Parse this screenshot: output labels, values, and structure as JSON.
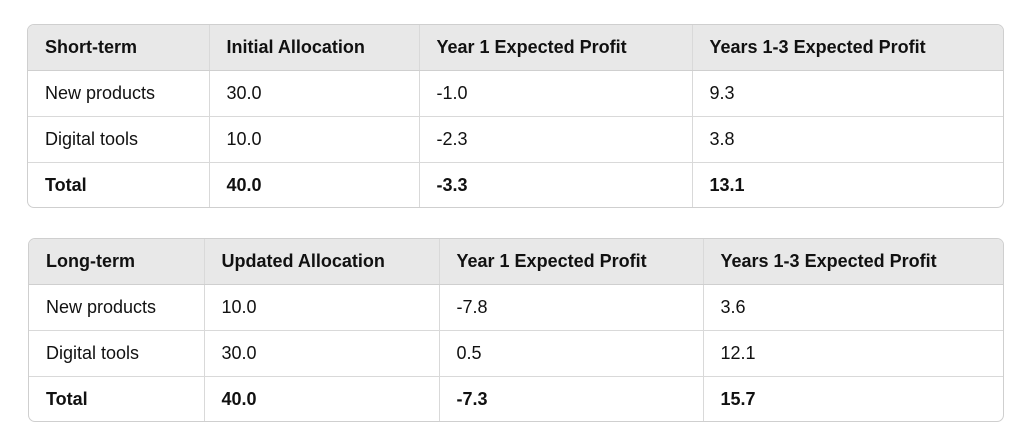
{
  "tables": [
    {
      "headers": [
        "Short-term",
        "Initial Allocation",
        "Year 1 Expected Profit",
        "Years 1-3 Expected Profit"
      ],
      "rows": [
        [
          "New products",
          "30.0",
          "-1.0",
          "9.3"
        ],
        [
          "Digital tools",
          "10.0",
          "-2.3",
          "3.8"
        ],
        [
          "Total",
          "40.0",
          "-3.3",
          "13.1"
        ]
      ]
    },
    {
      "headers": [
        "Long-term",
        "Updated Allocation",
        "Year 1 Expected Profit",
        "Years 1-3 Expected Profit"
      ],
      "rows": [
        [
          "New products",
          "10.0",
          "-7.8",
          "3.6"
        ],
        [
          "Digital tools",
          "30.0",
          "0.5",
          "12.1"
        ],
        [
          "Total",
          "40.0",
          "-7.3",
          "15.7"
        ]
      ]
    }
  ]
}
